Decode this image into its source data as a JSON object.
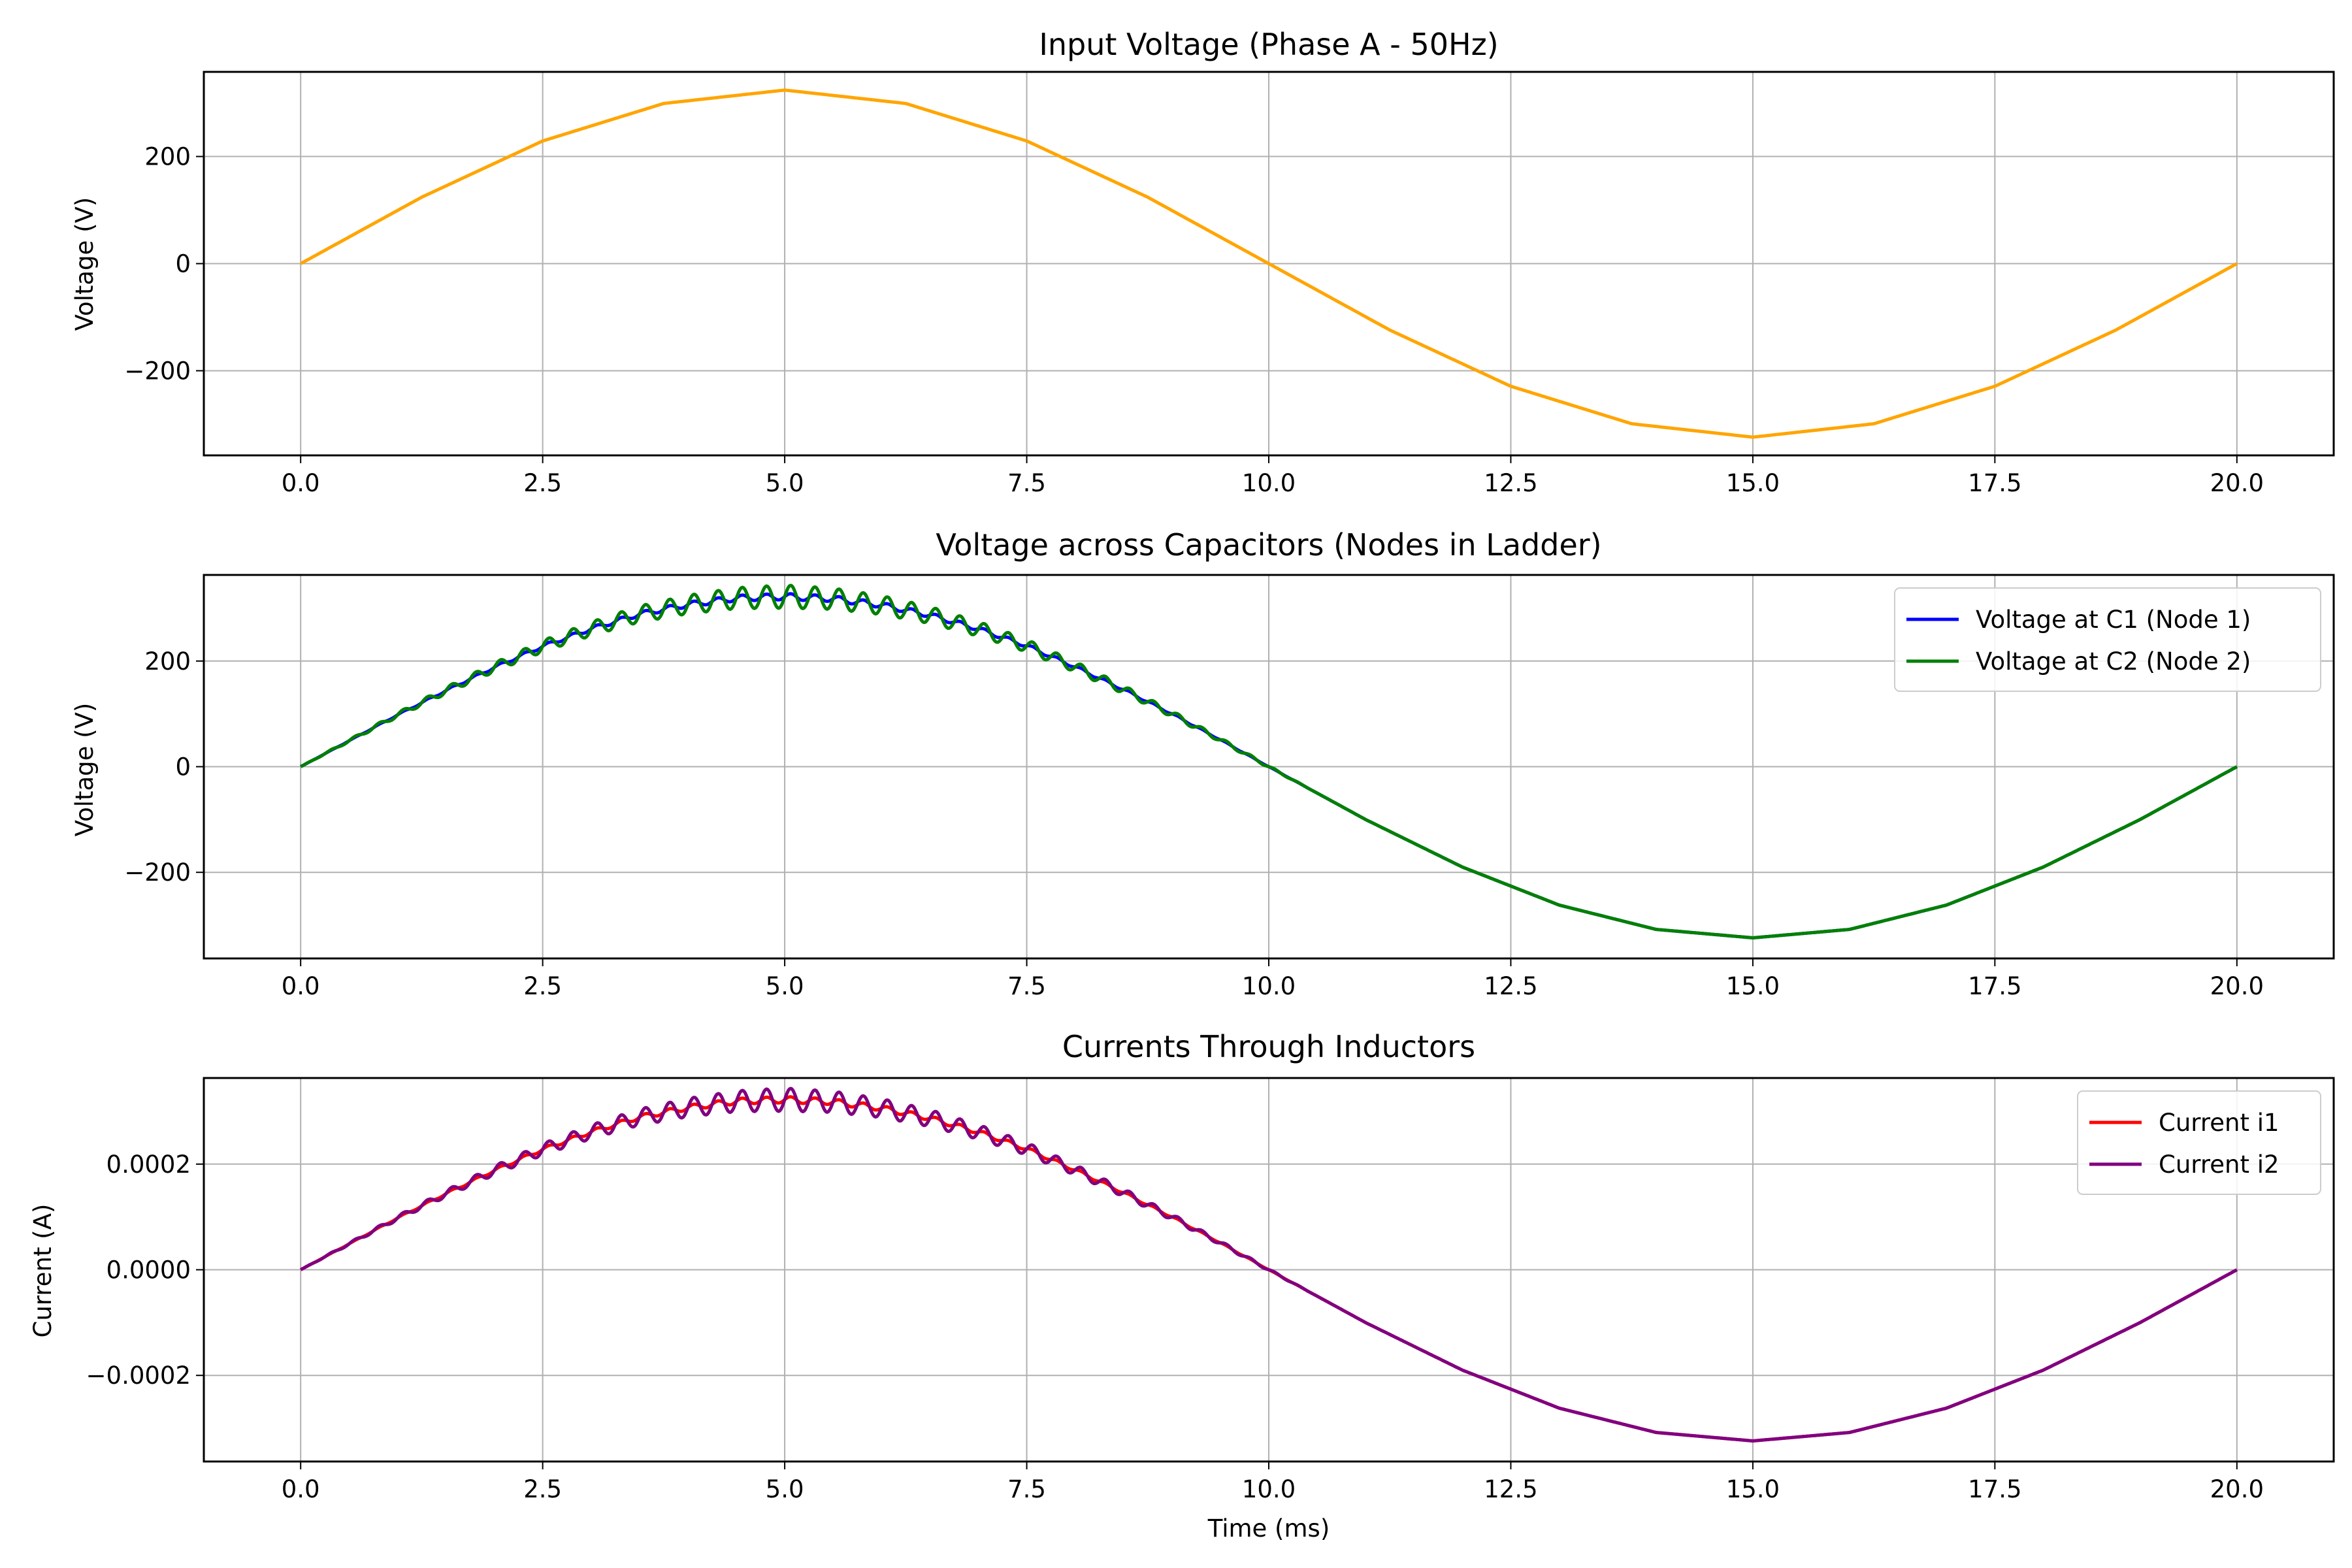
{
  "chart_data": [
    {
      "type": "line",
      "title": "Input Voltage (Phase A - 50Hz)",
      "xlabel": "",
      "ylabel": "Voltage (V)",
      "xlim": [
        -1.0,
        21.0
      ],
      "ylim": [
        -358,
        358
      ],
      "x_ticks": [
        0.0,
        2.5,
        5.0,
        7.5,
        10.0,
        12.5,
        15.0,
        17.5,
        20.0
      ],
      "x_tick_labels": [
        "0.0",
        "2.5",
        "5.0",
        "7.5",
        "10.0",
        "12.5",
        "15.0",
        "17.5",
        "20.0"
      ],
      "y_ticks": [
        200,
        0,
        -200
      ],
      "y_tick_labels": [
        "200",
        "0",
        "−200"
      ],
      "grid": true,
      "legend": null,
      "series": [
        {
          "color": "#FFA500",
          "x": [
            0,
            1.25,
            2.5,
            3.75,
            5,
            6.25,
            7.5,
            8.75,
            10,
            11.25,
            12.5,
            13.75,
            15,
            16.25,
            17.5,
            18.75,
            20
          ],
          "values": [
            0,
            124,
            229,
            299,
            324,
            299,
            229,
            124,
            0,
            -124,
            -229,
            -299,
            -324,
            -299,
            -229,
            -124,
            0
          ]
        }
      ]
    },
    {
      "type": "line",
      "title": "Voltage across Capacitors (Nodes in Ladder)",
      "xlabel": "",
      "ylabel": "Voltage (V)",
      "xlim": [
        -1.0,
        21.0
      ],
      "ylim": [
        -363,
        363
      ],
      "x_ticks": [
        0.0,
        2.5,
        5.0,
        7.5,
        10.0,
        12.5,
        15.0,
        17.5,
        20.0
      ],
      "x_tick_labels": [
        "0.0",
        "2.5",
        "5.0",
        "7.5",
        "10.0",
        "12.5",
        "15.0",
        "17.5",
        "20.0"
      ],
      "y_ticks": [
        200,
        0,
        -200
      ],
      "y_tick_labels": [
        "200",
        "0",
        "−200"
      ],
      "grid": true,
      "legend": "top-right",
      "series": [
        {
          "name": "Voltage at C1 (Node 1)",
          "color": "#0000FF",
          "x": [
            0,
            0.5,
            1,
            1.5,
            2,
            2.5,
            3,
            3.5,
            4,
            4.5,
            5,
            5.5,
            6,
            6.5,
            7,
            7.5,
            8,
            8.5,
            9,
            9.5,
            10,
            11,
            12,
            13,
            14,
            15,
            16,
            17,
            18,
            19,
            20
          ],
          "values": [
            0,
            49,
            98,
            144,
            188,
            228,
            261,
            289,
            307,
            319,
            322,
            318,
            306,
            287,
            261,
            229,
            189,
            146,
            100,
            51,
            0,
            -100,
            -190,
            -262,
            -308,
            -324,
            -308,
            -262,
            -190,
            -100,
            0
          ]
        },
        {
          "name": "Voltage at C2 (Node 2)",
          "color": "#008000",
          "x": [
            0,
            0.5,
            1,
            1.5,
            2,
            2.5,
            3,
            3.5,
            4,
            4.5,
            5,
            5.5,
            6,
            6.5,
            7,
            7.5,
            8,
            8.5,
            9,
            9.5,
            10,
            11,
            12,
            13,
            14,
            15,
            16,
            17,
            18,
            19,
            20
          ],
          "values": [
            0,
            49,
            98,
            144,
            188,
            228,
            261,
            289,
            307,
            319,
            322,
            318,
            306,
            287,
            261,
            229,
            189,
            146,
            100,
            51,
            0,
            -100,
            -190,
            -262,
            -308,
            -324,
            -308,
            -262,
            -190,
            -100,
            0
          ]
        }
      ]
    },
    {
      "type": "line",
      "title": "Currents Through Inductors",
      "xlabel": "Time (ms)",
      "ylabel": "Current (A)",
      "xlim": [
        -1.0,
        21.0
      ],
      "ylim": [
        -0.000363,
        0.000363
      ],
      "x_ticks": [
        0.0,
        2.5,
        5.0,
        7.5,
        10.0,
        12.5,
        15.0,
        17.5,
        20.0
      ],
      "x_tick_labels": [
        "0.0",
        "2.5",
        "5.0",
        "7.5",
        "10.0",
        "12.5",
        "15.0",
        "17.5",
        "20.0"
      ],
      "y_ticks": [
        0.0002,
        0.0,
        -0.0002
      ],
      "y_tick_labels": [
        "0.0002",
        "0.0000",
        "−0.0002"
      ],
      "grid": true,
      "legend": "top-right",
      "series": [
        {
          "name": "Current i1",
          "color": "#FF0000",
          "x": [
            0,
            0.5,
            1,
            1.5,
            2,
            2.5,
            3,
            3.5,
            4,
            4.5,
            5,
            5.5,
            6,
            6.5,
            7,
            7.5,
            8,
            8.5,
            9,
            9.5,
            10,
            11,
            12,
            13,
            14,
            15,
            16,
            17,
            18,
            19,
            20
          ],
          "values": [
            0,
            4.9e-05,
            9.8e-05,
            0.000144,
            0.000188,
            0.000228,
            0.000261,
            0.000289,
            0.000307,
            0.000319,
            0.000322,
            0.000318,
            0.000306,
            0.000287,
            0.000261,
            0.000229,
            0.000189,
            0.000146,
            0.0001,
            5.1e-05,
            0,
            -0.0001,
            -0.00019,
            -0.000262,
            -0.000308,
            -0.000324,
            -0.000308,
            -0.000262,
            -0.00019,
            -0.0001,
            0
          ]
        },
        {
          "name": "Current i2",
          "color": "#800080",
          "x": [
            0,
            0.5,
            1,
            1.5,
            2,
            2.5,
            3,
            3.5,
            4,
            4.5,
            5,
            5.5,
            6,
            6.5,
            7,
            7.5,
            8,
            8.5,
            9,
            9.5,
            10,
            11,
            12,
            13,
            14,
            15,
            16,
            17,
            18,
            19,
            20
          ],
          "values": [
            0,
            4.9e-05,
            9.8e-05,
            0.000144,
            0.000188,
            0.000228,
            0.000261,
            0.000289,
            0.000307,
            0.000319,
            0.000322,
            0.000318,
            0.000306,
            0.000287,
            0.000261,
            0.000229,
            0.000189,
            0.000146,
            0.0001,
            5.1e-05,
            0,
            -0.0001,
            -0.00019,
            -0.000262,
            -0.000308,
            -0.000324,
            -0.000308,
            -0.000262,
            -0.00019,
            -0.0001,
            0
          ]
        }
      ]
    }
  ]
}
